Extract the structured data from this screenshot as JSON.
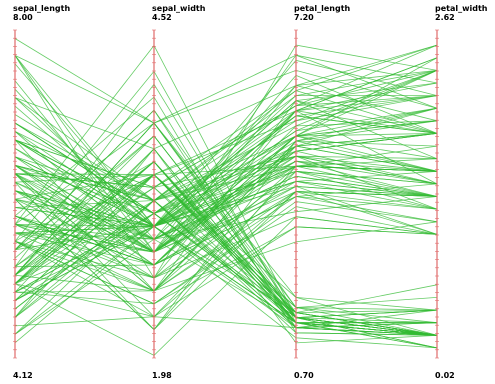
{
  "chart_data": {
    "type": "parallel-coordinates",
    "title": "",
    "line_color": "#33bb33",
    "axis_color": "#e06a6a",
    "axes": [
      {
        "name": "sepal_length",
        "max_label": "8.00",
        "min_label": "4.12",
        "max": 8.0,
        "min": 4.12
      },
      {
        "name": "sepal_width",
        "max_label": "4.52",
        "min_label": "1.98",
        "max": 4.52,
        "min": 1.98
      },
      {
        "name": "petal_length",
        "max_label": "7.20",
        "min_label": "0.70",
        "max": 7.2,
        "min": 0.7
      },
      {
        "name": "petal_width",
        "max_label": "2.62",
        "min_label": "0.02",
        "max": 2.62,
        "min": 0.02
      }
    ],
    "records": [
      [
        5.1,
        3.5,
        1.4,
        0.2
      ],
      [
        4.9,
        3.0,
        1.4,
        0.2
      ],
      [
        4.7,
        3.2,
        1.3,
        0.2
      ],
      [
        4.6,
        3.1,
        1.5,
        0.2
      ],
      [
        5.0,
        3.6,
        1.4,
        0.2
      ],
      [
        5.4,
        3.9,
        1.7,
        0.4
      ],
      [
        4.6,
        3.4,
        1.4,
        0.3
      ],
      [
        5.0,
        3.4,
        1.5,
        0.2
      ],
      [
        4.4,
        2.9,
        1.4,
        0.2
      ],
      [
        4.9,
        3.1,
        1.5,
        0.1
      ],
      [
        5.4,
        3.7,
        1.5,
        0.2
      ],
      [
        4.8,
        3.4,
        1.6,
        0.2
      ],
      [
        4.8,
        3.0,
        1.4,
        0.1
      ],
      [
        4.3,
        3.0,
        1.1,
        0.1
      ],
      [
        5.8,
        4.0,
        1.2,
        0.2
      ],
      [
        5.7,
        4.4,
        1.5,
        0.4
      ],
      [
        5.4,
        3.9,
        1.3,
        0.4
      ],
      [
        5.1,
        3.5,
        1.4,
        0.3
      ],
      [
        5.7,
        3.8,
        1.7,
        0.3
      ],
      [
        5.1,
        3.8,
        1.5,
        0.3
      ],
      [
        5.4,
        3.4,
        1.7,
        0.2
      ],
      [
        5.1,
        3.7,
        1.5,
        0.4
      ],
      [
        4.6,
        3.6,
        1.0,
        0.2
      ],
      [
        5.1,
        3.3,
        1.7,
        0.5
      ],
      [
        4.8,
        3.4,
        1.9,
        0.2
      ],
      [
        5.0,
        3.0,
        1.6,
        0.2
      ],
      [
        5.0,
        3.4,
        1.6,
        0.4
      ],
      [
        5.2,
        3.5,
        1.5,
        0.2
      ],
      [
        5.2,
        3.4,
        1.4,
        0.2
      ],
      [
        4.7,
        3.2,
        1.6,
        0.2
      ],
      [
        4.8,
        3.1,
        1.6,
        0.2
      ],
      [
        5.4,
        3.4,
        1.5,
        0.4
      ],
      [
        5.2,
        4.1,
        1.5,
        0.1
      ],
      [
        5.5,
        4.2,
        1.4,
        0.2
      ],
      [
        4.9,
        3.1,
        1.5,
        0.2
      ],
      [
        5.0,
        3.2,
        1.2,
        0.2
      ],
      [
        5.5,
        3.5,
        1.3,
        0.2
      ],
      [
        4.9,
        3.6,
        1.4,
        0.1
      ],
      [
        4.4,
        3.0,
        1.3,
        0.2
      ],
      [
        5.1,
        3.4,
        1.5,
        0.2
      ],
      [
        5.0,
        3.5,
        1.3,
        0.3
      ],
      [
        4.5,
        2.3,
        1.3,
        0.3
      ],
      [
        4.4,
        3.2,
        1.3,
        0.2
      ],
      [
        5.0,
        3.5,
        1.6,
        0.6
      ],
      [
        5.1,
        3.8,
        1.9,
        0.4
      ],
      [
        4.8,
        3.0,
        1.4,
        0.3
      ],
      [
        5.1,
        3.8,
        1.6,
        0.2
      ],
      [
        4.6,
        3.2,
        1.4,
        0.2
      ],
      [
        5.3,
        3.7,
        1.5,
        0.2
      ],
      [
        5.0,
        3.3,
        1.4,
        0.2
      ],
      [
        7.0,
        3.2,
        4.7,
        1.4
      ],
      [
        6.4,
        3.2,
        4.5,
        1.5
      ],
      [
        6.9,
        3.1,
        4.9,
        1.5
      ],
      [
        5.5,
        2.3,
        4.0,
        1.3
      ],
      [
        6.5,
        2.8,
        4.6,
        1.5
      ],
      [
        5.7,
        2.8,
        4.5,
        1.3
      ],
      [
        6.3,
        3.3,
        4.7,
        1.6
      ],
      [
        4.9,
        2.4,
        3.3,
        1.0
      ],
      [
        6.6,
        2.9,
        4.6,
        1.3
      ],
      [
        5.2,
        2.7,
        3.9,
        1.4
      ],
      [
        5.0,
        2.0,
        3.5,
        1.0
      ],
      [
        5.9,
        3.0,
        4.2,
        1.5
      ],
      [
        6.0,
        2.2,
        4.0,
        1.0
      ],
      [
        6.1,
        2.9,
        4.7,
        1.4
      ],
      [
        5.6,
        2.9,
        3.6,
        1.3
      ],
      [
        6.7,
        3.1,
        4.4,
        1.4
      ],
      [
        5.6,
        3.0,
        4.5,
        1.5
      ],
      [
        5.8,
        2.7,
        4.1,
        1.0
      ],
      [
        6.2,
        2.2,
        4.5,
        1.5
      ],
      [
        5.6,
        2.5,
        3.9,
        1.1
      ],
      [
        5.9,
        3.2,
        4.8,
        1.8
      ],
      [
        6.1,
        2.8,
        4.0,
        1.3
      ],
      [
        6.3,
        2.5,
        4.9,
        1.5
      ],
      [
        6.1,
        2.8,
        4.7,
        1.2
      ],
      [
        6.4,
        2.9,
        4.3,
        1.3
      ],
      [
        6.6,
        3.0,
        4.4,
        1.4
      ],
      [
        6.8,
        2.8,
        4.8,
        1.4
      ],
      [
        6.7,
        3.0,
        5.0,
        1.7
      ],
      [
        6.0,
        2.9,
        4.5,
        1.5
      ],
      [
        5.7,
        2.6,
        3.5,
        1.0
      ],
      [
        5.5,
        2.4,
        3.8,
        1.1
      ],
      [
        5.5,
        2.4,
        3.7,
        1.0
      ],
      [
        5.8,
        2.7,
        3.9,
        1.2
      ],
      [
        6.0,
        2.7,
        5.1,
        1.6
      ],
      [
        5.4,
        3.0,
        4.5,
        1.5
      ],
      [
        6.0,
        3.4,
        4.5,
        1.6
      ],
      [
        6.7,
        3.1,
        4.7,
        1.5
      ],
      [
        6.3,
        2.3,
        4.4,
        1.3
      ],
      [
        5.6,
        3.0,
        4.1,
        1.3
      ],
      [
        5.5,
        2.5,
        4.0,
        1.3
      ],
      [
        5.5,
        2.6,
        4.4,
        1.2
      ],
      [
        6.1,
        3.0,
        4.6,
        1.4
      ],
      [
        5.8,
        2.6,
        4.0,
        1.2
      ],
      [
        5.0,
        2.3,
        3.3,
        1.0
      ],
      [
        5.6,
        2.7,
        4.2,
        1.3
      ],
      [
        5.7,
        3.0,
        4.2,
        1.2
      ],
      [
        5.7,
        2.9,
        4.2,
        1.3
      ],
      [
        6.2,
        2.9,
        4.3,
        1.3
      ],
      [
        5.1,
        2.5,
        3.0,
        1.1
      ],
      [
        5.7,
        2.8,
        4.1,
        1.3
      ],
      [
        6.3,
        3.3,
        6.0,
        2.5
      ],
      [
        5.8,
        2.7,
        5.1,
        1.9
      ],
      [
        7.1,
        3.0,
        5.9,
        2.1
      ],
      [
        6.3,
        2.9,
        5.6,
        1.8
      ],
      [
        6.5,
        3.0,
        5.8,
        2.2
      ],
      [
        7.6,
        3.0,
        6.6,
        2.1
      ],
      [
        4.9,
        2.5,
        4.5,
        1.7
      ],
      [
        7.3,
        2.9,
        6.3,
        1.8
      ],
      [
        6.7,
        2.5,
        5.8,
        1.8
      ],
      [
        7.2,
        3.6,
        6.1,
        2.5
      ],
      [
        6.5,
        3.2,
        5.1,
        2.0
      ],
      [
        6.4,
        2.7,
        5.3,
        1.9
      ],
      [
        6.8,
        3.0,
        5.5,
        2.1
      ],
      [
        5.7,
        2.5,
        5.0,
        2.0
      ],
      [
        5.8,
        2.8,
        5.1,
        2.4
      ],
      [
        6.4,
        3.2,
        5.3,
        2.3
      ],
      [
        6.5,
        3.0,
        5.5,
        1.8
      ],
      [
        7.7,
        3.8,
        6.7,
        2.2
      ],
      [
        7.7,
        2.6,
        6.9,
        2.3
      ],
      [
        6.0,
        2.2,
        5.0,
        1.5
      ],
      [
        6.9,
        3.2,
        5.7,
        2.3
      ],
      [
        5.6,
        2.8,
        4.9,
        2.0
      ],
      [
        7.7,
        2.8,
        6.7,
        2.0
      ],
      [
        6.3,
        2.7,
        4.9,
        1.8
      ],
      [
        6.7,
        3.3,
        5.7,
        2.1
      ],
      [
        7.2,
        3.2,
        6.0,
        1.8
      ],
      [
        6.2,
        2.8,
        4.8,
        1.8
      ],
      [
        6.1,
        3.0,
        4.9,
        1.8
      ],
      [
        6.4,
        2.8,
        5.6,
        2.1
      ],
      [
        7.2,
        3.0,
        5.8,
        1.6
      ],
      [
        7.4,
        2.8,
        6.1,
        1.9
      ],
      [
        7.9,
        3.8,
        6.4,
        2.0
      ],
      [
        6.4,
        2.8,
        5.6,
        2.2
      ],
      [
        6.3,
        2.8,
        5.1,
        1.5
      ],
      [
        6.1,
        2.6,
        5.6,
        1.4
      ],
      [
        7.7,
        3.0,
        6.1,
        2.3
      ],
      [
        6.3,
        3.4,
        5.6,
        2.4
      ],
      [
        6.4,
        3.1,
        5.5,
        1.8
      ],
      [
        6.0,
        3.0,
        4.8,
        1.8
      ],
      [
        6.9,
        3.1,
        5.4,
        2.1
      ],
      [
        6.7,
        3.1,
        5.6,
        2.4
      ],
      [
        6.9,
        3.1,
        5.1,
        2.3
      ],
      [
        5.8,
        2.7,
        5.1,
        1.9
      ],
      [
        6.8,
        3.2,
        5.9,
        2.3
      ],
      [
        6.7,
        3.3,
        5.7,
        2.5
      ],
      [
        6.7,
        3.0,
        5.2,
        2.3
      ],
      [
        6.3,
        2.5,
        5.0,
        1.9
      ],
      [
        6.5,
        3.0,
        5.2,
        2.0
      ],
      [
        6.2,
        3.4,
        5.4,
        2.3
      ],
      [
        5.9,
        3.0,
        5.1,
        1.8
      ]
    ]
  }
}
